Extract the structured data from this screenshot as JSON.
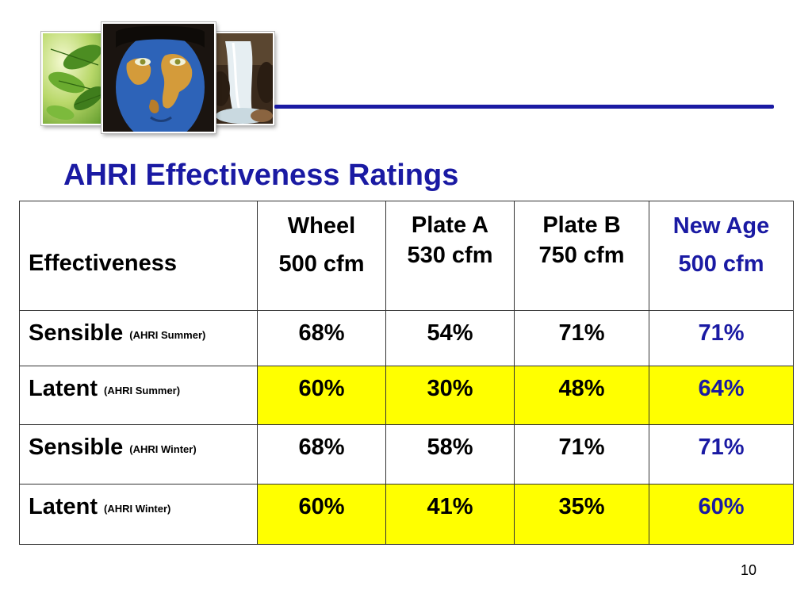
{
  "slide": {
    "title": "AHRI Effectiveness Ratings",
    "page_number": "10"
  },
  "header_images": [
    "leaves-photo",
    "world-map-face-photo",
    "waterfall-photo"
  ],
  "colors": {
    "title": "#1a1aa3",
    "accent_rule": "#1a1aa3",
    "highlight_fill": "#ffff00",
    "new_age_text": "#1a1aa3"
  },
  "table": {
    "header": {
      "label": "Effectiveness",
      "columns": [
        {
          "line1": "Wheel",
          "line2": "500 cfm"
        },
        {
          "line1": "Plate A",
          "line2": "530 cfm"
        },
        {
          "line1": "Plate B",
          "line2": "750 cfm"
        },
        {
          "line1": "New Age",
          "line2": "500 cfm"
        }
      ]
    },
    "rows": [
      {
        "label": "Sensible",
        "note": "(AHRI Summer)",
        "highlighted": false,
        "values": [
          "68%",
          "54%",
          "71%",
          "71%"
        ]
      },
      {
        "label": "Latent",
        "note": "(AHRI Summer)",
        "highlighted": true,
        "values": [
          "60%",
          "30%",
          "48%",
          "64%"
        ]
      },
      {
        "label": "Sensible",
        "note": "(AHRI Winter)",
        "highlighted": false,
        "values": [
          "68%",
          "58%",
          "71%",
          "71%"
        ]
      },
      {
        "label": "Latent",
        "note": "(AHRI Winter)",
        "highlighted": true,
        "values": [
          "60%",
          "41%",
          "35%",
          "60%"
        ]
      }
    ]
  }
}
